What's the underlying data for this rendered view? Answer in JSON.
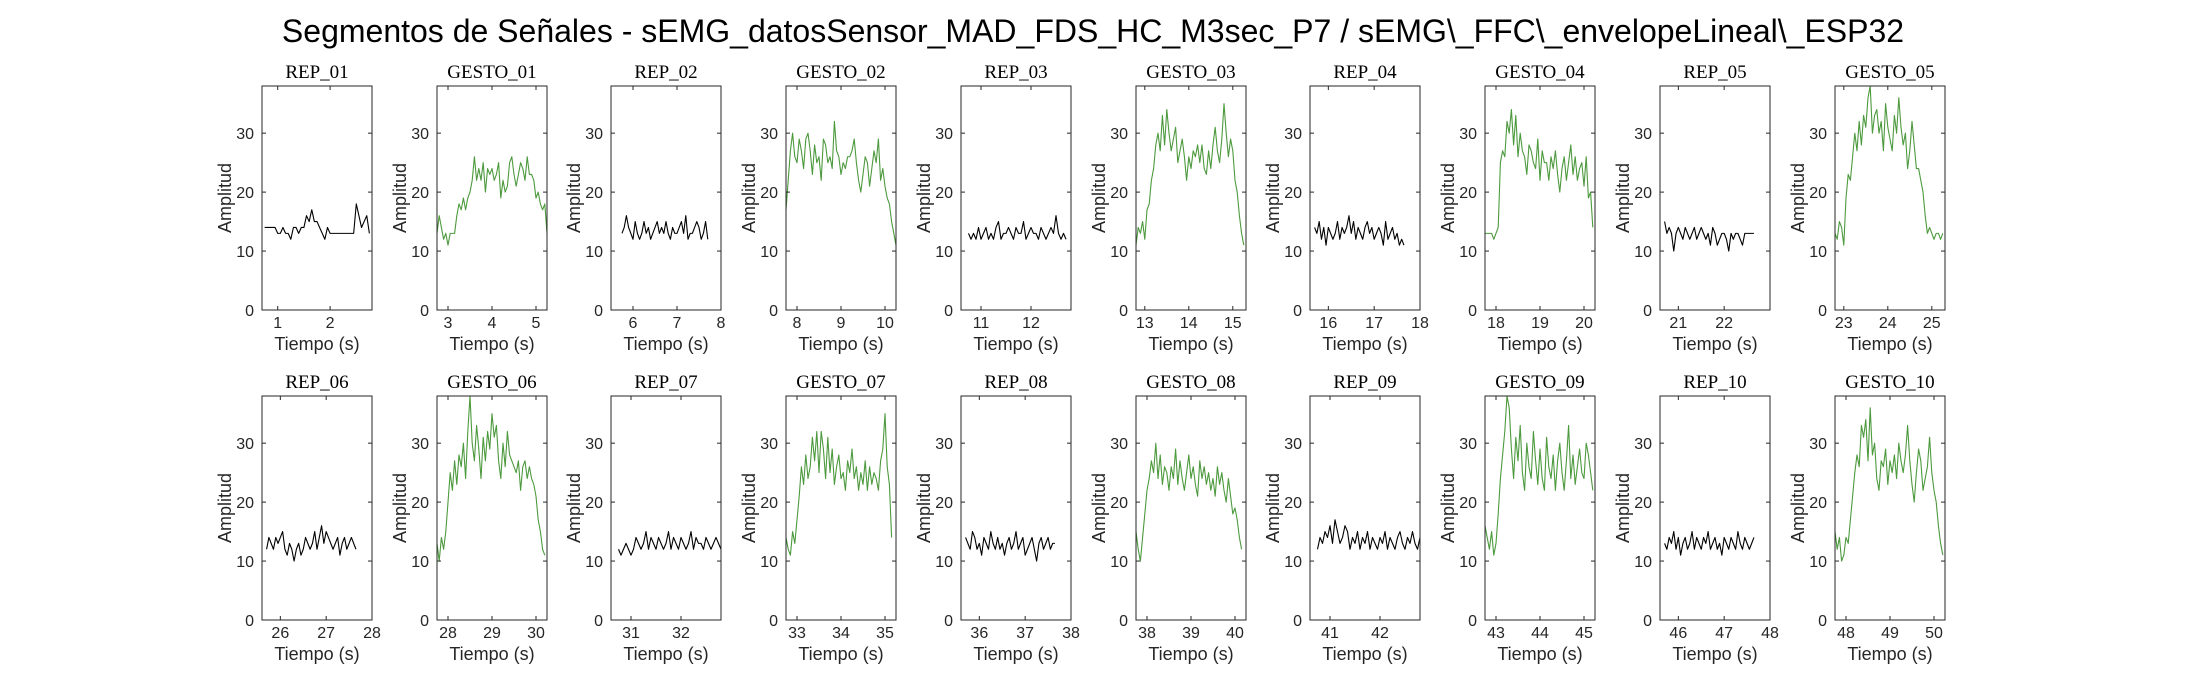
{
  "figure": {
    "title": "Segmentos de Señales - sEMG_datosSensor_MAD_FDS_HC_M3sec_P7 / sEMG\\_FFC\\_envelopeLineal\\_ESP32"
  },
  "chart_data": [
    {
      "type": "line",
      "title": "REP_01",
      "xlabel": "Tiempo (s)",
      "ylabel": "Amplitud",
      "ylim": [
        0,
        38
      ],
      "xlim": [
        0.7,
        2.8
      ],
      "xticks": [
        1,
        2
      ],
      "yticks": [
        0,
        10,
        20,
        30
      ],
      "color": "#000000",
      "x0": 0.75,
      "dt": 0.05,
      "y": [
        14,
        14,
        14,
        14,
        14,
        13,
        13,
        14,
        13,
        13,
        12,
        14,
        14,
        13,
        14,
        14,
        16,
        15,
        17,
        15,
        15,
        14,
        13,
        12,
        14,
        13,
        13,
        13,
        13,
        13,
        13,
        13,
        13,
        13,
        13,
        18,
        16,
        14,
        15,
        16,
        13
      ]
    },
    {
      "type": "line",
      "title": "GESTO_01",
      "xlabel": "Tiempo (s)",
      "ylabel": "Amplitud",
      "ylim": [
        0,
        38
      ],
      "xlim": [
        2.75,
        5.25
      ],
      "xticks": [
        3,
        4,
        5
      ],
      "yticks": [
        0,
        10,
        20,
        30
      ],
      "color": "#4d9a3e",
      "x0": 2.75,
      "dt": 0.05,
      "y": [
        13,
        16,
        14,
        12,
        13,
        11,
        13,
        13,
        13,
        16,
        18,
        17,
        19,
        17,
        19,
        20,
        22,
        26,
        22,
        24,
        22,
        25,
        20,
        24,
        23,
        24,
        22,
        23,
        25,
        19,
        22,
        20,
        21,
        25,
        26,
        23,
        21,
        23,
        25,
        24,
        22,
        26,
        23,
        23,
        22,
        19,
        20,
        18,
        17,
        18,
        13
      ]
    },
    {
      "type": "line",
      "title": "REP_02",
      "xlabel": "Tiempo (s)",
      "ylabel": "Amplitud",
      "ylim": [
        0,
        38
      ],
      "xlim": [
        5.5,
        8.0
      ],
      "xticks": [
        6,
        7,
        8
      ],
      "yticks": [
        0,
        10,
        20,
        30
      ],
      "color": "#000000",
      "x0": 5.75,
      "dt": 0.05,
      "y": [
        13,
        14,
        16,
        14,
        13,
        12,
        15,
        13,
        12,
        13,
        15,
        13,
        14,
        12,
        13,
        14,
        15,
        13,
        14,
        13,
        15,
        13,
        12,
        14,
        13,
        13,
        14,
        15,
        13,
        16,
        12,
        13,
        13,
        14,
        15,
        14,
        12,
        13,
        15,
        12
      ]
    },
    {
      "type": "line",
      "title": "GESTO_02",
      "xlabel": "Tiempo (s)",
      "ylabel": "Amplitud",
      "ylim": [
        0,
        38
      ],
      "xlim": [
        7.75,
        10.25
      ],
      "xticks": [
        8,
        9,
        10
      ],
      "yticks": [
        0,
        10,
        20,
        30
      ],
      "color": "#4d9a3e",
      "x0": 7.75,
      "dt": 0.05,
      "y": [
        17,
        22,
        27,
        30,
        26,
        25,
        29,
        27,
        24,
        29,
        30,
        27,
        23,
        28,
        25,
        26,
        22,
        29,
        28,
        25,
        26,
        24,
        32,
        27,
        26,
        23,
        25,
        24,
        26,
        26,
        27,
        29,
        25,
        22,
        20,
        23,
        26,
        25,
        21,
        24,
        27,
        25,
        29,
        22,
        24,
        21,
        19,
        18,
        15,
        13,
        11
      ]
    },
    {
      "type": "line",
      "title": "REP_03",
      "xlabel": "Tiempo (s)",
      "ylabel": "Amplitud",
      "ylim": [
        0,
        38
      ],
      "xlim": [
        10.6,
        12.8
      ],
      "xticks": [
        11,
        12
      ],
      "yticks": [
        0,
        10,
        20,
        30
      ],
      "color": "#000000",
      "x0": 10.75,
      "dt": 0.05,
      "y": [
        13,
        12,
        13,
        12,
        14,
        12,
        13,
        14,
        12,
        13,
        12,
        14,
        15,
        12,
        13,
        13,
        14,
        13,
        12,
        14,
        13,
        13,
        15,
        12,
        13,
        14,
        13,
        13,
        12,
        14,
        13,
        12,
        13,
        14,
        13,
        16,
        13,
        12,
        13,
        12
      ]
    },
    {
      "type": "line",
      "title": "GESTO_03",
      "xlabel": "Tiempo (s)",
      "ylabel": "Amplitud",
      "ylim": [
        0,
        38
      ],
      "xlim": [
        12.8,
        15.3
      ],
      "xticks": [
        13,
        14,
        15
      ],
      "yticks": [
        0,
        10,
        20,
        30
      ],
      "color": "#4d9a3e",
      "x0": 12.8,
      "dt": 0.05,
      "y": [
        11,
        14,
        13,
        15,
        12,
        17,
        18,
        22,
        24,
        28,
        30,
        27,
        33,
        28,
        34,
        30,
        27,
        29,
        31,
        25,
        27,
        29,
        26,
        22,
        26,
        24,
        27,
        26,
        28,
        25,
        28,
        24,
        23,
        27,
        24,
        28,
        31,
        27,
        25,
        29,
        35,
        30,
        26,
        29,
        27,
        22,
        20,
        16,
        13,
        11
      ]
    },
    {
      "type": "line",
      "title": "REP_04",
      "xlabel": "Tiempo (s)",
      "ylabel": "Amplitud",
      "ylim": [
        0,
        38
      ],
      "xlim": [
        15.6,
        18.0
      ],
      "xticks": [
        16,
        17,
        18
      ],
      "yticks": [
        0,
        10,
        20,
        30
      ],
      "color": "#000000",
      "x0": 15.7,
      "dt": 0.05,
      "y": [
        14,
        13,
        15,
        12,
        14,
        11,
        14,
        13,
        12,
        13,
        15,
        12,
        14,
        13,
        14,
        16,
        13,
        15,
        12,
        14,
        13,
        12,
        14,
        15,
        13,
        14,
        12,
        13,
        14,
        13,
        11,
        15,
        12,
        13,
        14,
        12,
        13,
        11,
        12,
        11
      ]
    },
    {
      "type": "line",
      "title": "GESTO_04",
      "xlabel": "Tiempo (s)",
      "ylabel": "Amplitud",
      "ylim": [
        0,
        38
      ],
      "xlim": [
        17.75,
        20.25
      ],
      "xticks": [
        18,
        19,
        20
      ],
      "yticks": [
        0,
        10,
        20,
        30
      ],
      "color": "#4d9a3e",
      "x0": 17.75,
      "dt": 0.05,
      "y": [
        13,
        13,
        13,
        13,
        12,
        13,
        14,
        25,
        27,
        26,
        32,
        30,
        34,
        28,
        33,
        26,
        30,
        27,
        26,
        23,
        28,
        27,
        25,
        24,
        29,
        22,
        27,
        25,
        25,
        22,
        26,
        24,
        27,
        23,
        20,
        24,
        26,
        22,
        25,
        28,
        23,
        26,
        22,
        24,
        25,
        21,
        26,
        19,
        20,
        14
      ]
    },
    {
      "type": "line",
      "title": "REP_05",
      "xlabel": "Tiempo (s)",
      "ylabel": "Amplitud",
      "ylim": [
        0,
        38
      ],
      "xlim": [
        20.6,
        23.0
      ],
      "xticks": [
        21,
        22
      ],
      "yticks": [
        0,
        10,
        20,
        30
      ],
      "color": "#000000",
      "x0": 20.7,
      "dt": 0.05,
      "y": [
        15,
        13,
        14,
        13,
        10,
        13,
        14,
        13,
        12,
        14,
        13,
        12,
        13,
        14,
        12,
        13,
        14,
        13,
        12,
        13,
        11,
        14,
        13,
        11,
        12,
        13,
        13,
        12,
        10,
        13,
        12,
        13,
        13,
        12,
        11,
        13,
        13,
        13,
        13,
        13
      ]
    },
    {
      "type": "line",
      "title": "GESTO_05",
      "xlabel": "Tiempo (s)",
      "ylabel": "Amplitud",
      "ylim": [
        0,
        38
      ],
      "xlim": [
        22.8,
        25.3
      ],
      "xticks": [
        23,
        24,
        25
      ],
      "yticks": [
        0,
        10,
        20,
        30
      ],
      "color": "#4d9a3e",
      "x0": 22.8,
      "dt": 0.05,
      "y": [
        13,
        12,
        15,
        14,
        11,
        19,
        23,
        22,
        26,
        30,
        27,
        32,
        28,
        33,
        31,
        36,
        38,
        30,
        33,
        34,
        30,
        32,
        27,
        35,
        31,
        29,
        27,
        33,
        30,
        36,
        31,
        28,
        30,
        24,
        27,
        32,
        28,
        24,
        24,
        22,
        20,
        16,
        13,
        14,
        13,
        12,
        13,
        13,
        12,
        13
      ]
    },
    {
      "type": "line",
      "title": "REP_06",
      "xlabel": "Tiempo (s)",
      "ylabel": "Amplitud",
      "ylim": [
        0,
        38
      ],
      "xlim": [
        25.6,
        28.0
      ],
      "xticks": [
        26,
        27,
        28
      ],
      "yticks": [
        0,
        10,
        20,
        30
      ],
      "color": "#000000",
      "x0": 25.7,
      "dt": 0.05,
      "y": [
        12,
        14,
        13,
        12,
        14,
        13,
        14,
        15,
        12,
        11,
        13,
        12,
        10,
        12,
        13,
        11,
        12,
        14,
        13,
        12,
        13,
        15,
        12,
        14,
        16,
        13,
        15,
        14,
        13,
        12,
        13,
        14,
        11,
        13,
        14,
        12,
        13,
        14,
        13,
        12
      ]
    },
    {
      "type": "line",
      "title": "GESTO_06",
      "xlabel": "Tiempo (s)",
      "ylabel": "Amplitud",
      "ylim": [
        0,
        38
      ],
      "xlim": [
        27.75,
        30.25
      ],
      "xticks": [
        28,
        29,
        30
      ],
      "yticks": [
        0,
        10,
        20,
        30
      ],
      "color": "#4d9a3e",
      "x0": 27.75,
      "dt": 0.05,
      "y": [
        13,
        10,
        14,
        12,
        15,
        20,
        25,
        22,
        27,
        23,
        28,
        26,
        30,
        24,
        32,
        38,
        30,
        27,
        33,
        29,
        24,
        31,
        27,
        32,
        29,
        35,
        31,
        33,
        27,
        24,
        30,
        26,
        32,
        28,
        27,
        26,
        25,
        27,
        22,
        26,
        27,
        24,
        26,
        24,
        23,
        21,
        17,
        15,
        12,
        11
      ]
    },
    {
      "type": "line",
      "title": "REP_07",
      "xlabel": "Tiempo (s)",
      "ylabel": "Amplitud",
      "ylim": [
        0,
        38
      ],
      "xlim": [
        30.6,
        32.8
      ],
      "xticks": [
        31,
        32
      ],
      "yticks": [
        0,
        10,
        20,
        30
      ],
      "color": "#000000",
      "x0": 30.75,
      "dt": 0.05,
      "y": [
        12,
        11,
        12,
        13,
        12,
        11,
        12,
        14,
        13,
        12,
        13,
        15,
        12,
        14,
        13,
        12,
        14,
        13,
        12,
        13,
        15,
        12,
        14,
        13,
        12,
        14,
        13,
        12,
        13,
        15,
        12,
        14,
        13,
        13,
        12,
        14,
        13,
        12,
        13,
        14,
        13,
        12
      ]
    },
    {
      "type": "line",
      "title": "GESTO_07",
      "xlabel": "Tiempo (s)",
      "ylabel": "Amplitud",
      "ylim": [
        0,
        38
      ],
      "xlim": [
        32.75,
        35.25
      ],
      "xticks": [
        33,
        34,
        35
      ],
      "yticks": [
        0,
        10,
        20,
        30
      ],
      "color": "#4d9a3e",
      "x0": 32.75,
      "dt": 0.05,
      "y": [
        14,
        12,
        11,
        15,
        13,
        17,
        21,
        26,
        23,
        28,
        24,
        26,
        31,
        27,
        32,
        25,
        32,
        29,
        24,
        31,
        25,
        29,
        23,
        26,
        28,
        24,
        25,
        22,
        27,
        25,
        29,
        24,
        26,
        22,
        25,
        23,
        27,
        22,
        26,
        23,
        25,
        24,
        22,
        27,
        29,
        35,
        26,
        23,
        14
      ]
    },
    {
      "type": "line",
      "title": "REP_08",
      "xlabel": "Tiempo (s)",
      "ylabel": "Amplitud",
      "ylim": [
        0,
        38
      ],
      "xlim": [
        35.6,
        38.0
      ],
      "xticks": [
        36,
        37,
        38
      ],
      "yticks": [
        0,
        10,
        20,
        30
      ],
      "color": "#000000",
      "x0": 35.7,
      "dt": 0.05,
      "y": [
        14,
        13,
        12,
        15,
        14,
        12,
        13,
        11,
        14,
        13,
        12,
        15,
        13,
        12,
        14,
        12,
        13,
        11,
        13,
        14,
        12,
        13,
        15,
        12,
        13,
        14,
        11,
        12,
        13,
        14,
        12,
        10,
        13,
        14,
        12,
        13,
        14,
        12,
        13,
        13
      ]
    },
    {
      "type": "line",
      "title": "GESTO_08",
      "xlabel": "Tiempo (s)",
      "ylabel": "Amplitud",
      "ylim": [
        0,
        38
      ],
      "xlim": [
        37.75,
        40.25
      ],
      "xticks": [
        38,
        39,
        40
      ],
      "yticks": [
        0,
        10,
        20,
        30
      ],
      "color": "#4d9a3e",
      "x0": 37.75,
      "dt": 0.05,
      "y": [
        15,
        12,
        10,
        14,
        18,
        22,
        24,
        27,
        25,
        30,
        24,
        28,
        23,
        26,
        25,
        22,
        26,
        24,
        29,
        23,
        27,
        24,
        22,
        25,
        28,
        24,
        26,
        23,
        21,
        27,
        24,
        26,
        23,
        25,
        22,
        24,
        21,
        26,
        23,
        25,
        22,
        20,
        24,
        21,
        18,
        19,
        17,
        14,
        12
      ]
    },
    {
      "type": "line",
      "title": "REP_09",
      "xlabel": "Tiempo (s)",
      "ylabel": "Amplitud",
      "ylim": [
        0,
        38
      ],
      "xlim": [
        40.6,
        42.8
      ],
      "xticks": [
        41,
        42
      ],
      "yticks": [
        0,
        10,
        20,
        30
      ],
      "color": "#000000",
      "x0": 40.75,
      "dt": 0.05,
      "y": [
        12,
        14,
        13,
        15,
        14,
        16,
        13,
        17,
        15,
        13,
        14,
        16,
        15,
        12,
        14,
        13,
        15,
        12,
        14,
        13,
        15,
        12,
        14,
        13,
        12,
        14,
        13,
        15,
        12,
        14,
        13,
        12,
        14,
        15,
        13,
        12,
        14,
        13,
        15,
        13,
        12,
        14
      ]
    },
    {
      "type": "line",
      "title": "GESTO_09",
      "xlabel": "Tiempo (s)",
      "ylabel": "Amplitud",
      "ylim": [
        0,
        38
      ],
      "xlim": [
        42.75,
        45.25
      ],
      "xticks": [
        43,
        44,
        45
      ],
      "yticks": [
        0,
        10,
        20,
        30
      ],
      "color": "#4d9a3e",
      "x0": 42.75,
      "dt": 0.05,
      "y": [
        16,
        14,
        12,
        15,
        11,
        13,
        18,
        24,
        28,
        32,
        38,
        36,
        29,
        24,
        31,
        27,
        33,
        25,
        22,
        30,
        26,
        24,
        32,
        27,
        23,
        29,
        24,
        22,
        31,
        26,
        24,
        28,
        22,
        27,
        30,
        25,
        22,
        27,
        33,
        24,
        28,
        23,
        26,
        29,
        25,
        24,
        30,
        28,
        25,
        22
      ]
    },
    {
      "type": "line",
      "title": "REP_10",
      "xlabel": "Tiempo (s)",
      "ylabel": "Amplitud",
      "ylim": [
        0,
        38
      ],
      "xlim": [
        45.6,
        48.0
      ],
      "xticks": [
        46,
        47,
        48
      ],
      "yticks": [
        0,
        10,
        20,
        30
      ],
      "color": "#000000",
      "x0": 45.7,
      "dt": 0.05,
      "y": [
        13,
        12,
        14,
        13,
        15,
        12,
        14,
        11,
        13,
        14,
        12,
        13,
        15,
        12,
        14,
        13,
        12,
        14,
        13,
        15,
        12,
        13,
        14,
        12,
        13,
        11,
        14,
        13,
        12,
        14,
        13,
        12,
        15,
        13,
        12,
        14,
        13,
        12,
        13,
        14
      ]
    },
    {
      "type": "line",
      "title": "GESTO_10",
      "xlabel": "Tiempo (s)",
      "ylabel": "Amplitud",
      "ylim": [
        0,
        38
      ],
      "xlim": [
        47.75,
        50.25
      ],
      "xticks": [
        48,
        49,
        50
      ],
      "yticks": [
        0,
        10,
        20,
        30
      ],
      "color": "#4d9a3e",
      "x0": 47.75,
      "dt": 0.05,
      "y": [
        15,
        12,
        14,
        10,
        11,
        14,
        13,
        17,
        21,
        25,
        28,
        26,
        33,
        31,
        34,
        27,
        36,
        28,
        30,
        24,
        22,
        27,
        26,
        29,
        23,
        27,
        25,
        28,
        24,
        30,
        27,
        25,
        28,
        33,
        27,
        23,
        20,
        25,
        29,
        27,
        22,
        24,
        26,
        31,
        25,
        22,
        20,
        16,
        13,
        11
      ]
    }
  ]
}
